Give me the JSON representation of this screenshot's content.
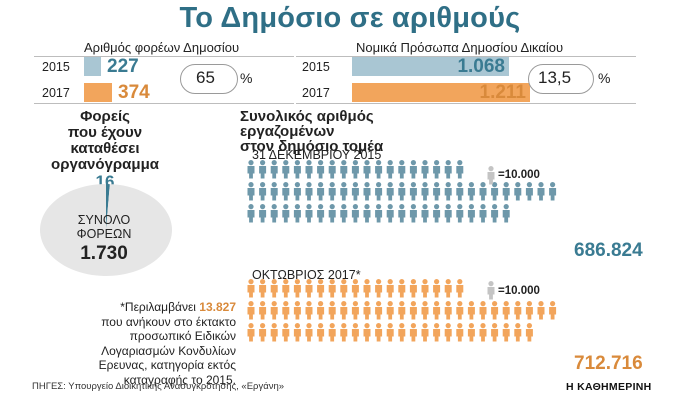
{
  "title": "Το Δημόσιο σε αριθμούς",
  "colors": {
    "teal": "#6e98aa",
    "teal_light": "#a9c6d3",
    "orange": "#f2a55c",
    "teal_dark": "#3a7b92",
    "orange_dark": "#d98a3b",
    "gray_icon": "#c4c4c4"
  },
  "bodies": {
    "label": "Αριθμός φορέων Δημοσίου",
    "rows": [
      {
        "year": "2015",
        "value_text": "227"
      },
      {
        "year": "2017",
        "value_text": "374"
      }
    ],
    "change_value": "65",
    "change_unit": "%"
  },
  "legal": {
    "label": "Νομικά Πρόσωπα Δημοσίου Δικαίου",
    "rows": [
      {
        "year": "2015",
        "value_text": "1.068"
      },
      {
        "year": "2017",
        "value_text": "1.211"
      }
    ],
    "change_value": "13,5",
    "change_unit": "%"
  },
  "org_charts": {
    "heading": [
      "Φορείς",
      "που έχουν",
      "καταθέσει",
      "οργανόγραμμα"
    ],
    "count": "16",
    "total_label": [
      "ΣΥΝΟΛΟ",
      "ΦΟΡΕΩΝ"
    ],
    "total_value": "1.730"
  },
  "employees": {
    "heading": [
      "Συνολικός αριθμός εργαζομένων",
      "στον δημόσιο τομέα"
    ],
    "legend_unit": "=10.000",
    "periods": [
      {
        "label": "31 ΔΕΚΕΜΒΡΙΟΥ 2015",
        "total": "686.824"
      },
      {
        "label": "ΟΚΤΩΒΡΙΟΣ 2017*",
        "total": "712.716"
      }
    ]
  },
  "footnote": {
    "prefix": "*Περιλαμβάνει",
    "highlight": "13.827",
    "lines": [
      "που ανήκουν στο έκτακτο",
      "προσωπικό Ειδικών",
      "Λογαριασμών Κονδυλίων",
      "Ερευνας, κατηγορία εκτός",
      "καταγραφής το 2015."
    ]
  },
  "source": "ΠΗΓΕΣ: Υπουργείο Διοικητικής Ανασυγκρότησης, «Εργάνη»",
  "brand": "Η ΚΑΘΗΜΕΡΙΝΗ",
  "chart_data": [
    {
      "type": "bar",
      "title": "Αριθμός φορέων Δημοσίου",
      "categories": [
        "2015",
        "2017"
      ],
      "values": [
        227,
        374
      ],
      "annotation": "65 %"
    },
    {
      "type": "bar",
      "title": "Νομικά Πρόσωπα Δημοσίου Δικαίου",
      "categories": [
        "2015",
        "2017"
      ],
      "values": [
        1068,
        1211
      ],
      "annotation": "13,5 %"
    },
    {
      "type": "pictogram",
      "title": "Συνολικός αριθμός εργαζομένων στον δημόσιο τομέα",
      "unit_per_icon": 10000,
      "categories": [
        "31 ΔΕΚΕΜΒΡΙΟΥ 2015",
        "ΟΚΤΩΒΡΙΟΣ 2017*"
      ],
      "values": [
        686824,
        712716
      ]
    },
    {
      "type": "pie",
      "title": "Φορείς που έχουν καταθέσει οργανόγραμμα",
      "slices": [
        {
          "value": 16
        },
        {
          "value": 1714
        }
      ],
      "total": 1730
    }
  ]
}
